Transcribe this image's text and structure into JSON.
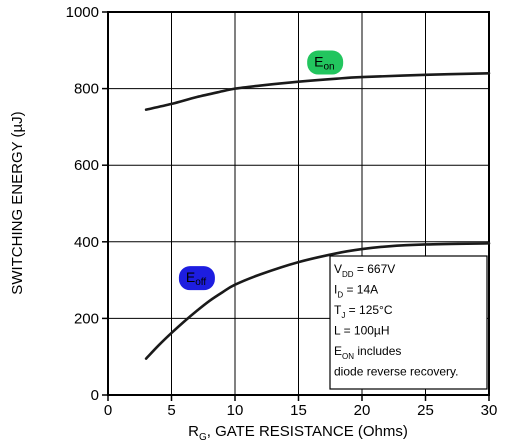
{
  "chart_data": {
    "type": "line",
    "xlabel": {
      "main": "R",
      "sub": "G",
      "rest": ", GATE RESISTANCE (Ohms)"
    },
    "ylabel": "SWITCHING ENERGY (µJ)",
    "xlim": [
      0,
      30
    ],
    "ylim": [
      0,
      1000
    ],
    "xticks": [
      "0",
      "5",
      "10",
      "15",
      "20",
      "25",
      "30"
    ],
    "yticks": [
      "0",
      "200",
      "400",
      "600",
      "800",
      "1000"
    ],
    "grid": true,
    "series": [
      {
        "name": "Eon",
        "label_main": "E",
        "label_sub": "on",
        "badge_color": "#22c55e",
        "x": [
          3,
          5,
          7,
          9,
          10,
          12,
          15,
          18,
          20,
          25,
          30
        ],
        "y": [
          745,
          760,
          778,
          793,
          800,
          808,
          818,
          826,
          830,
          836,
          840
        ]
      },
      {
        "name": "Eoff",
        "label_main": "E",
        "label_sub": "off",
        "badge_color": "#1d1de0",
        "x": [
          3,
          4,
          5,
          6,
          7,
          8,
          9,
          10,
          12,
          15,
          18,
          20,
          22,
          25,
          30
        ],
        "y": [
          95,
          130,
          162,
          192,
          220,
          246,
          268,
          288,
          315,
          347,
          370,
          381,
          388,
          393,
          396
        ]
      }
    ],
    "annotation": [
      {
        "main": "V",
        "sub": "DD",
        "rest": " = 667V"
      },
      {
        "main": "I",
        "sub": "D",
        "rest": " = 14A"
      },
      {
        "main": "T",
        "sub": "J",
        "rest": " = 125°C"
      },
      {
        "main": "L = 100µH",
        "sub": "",
        "rest": ""
      },
      {
        "main": "E",
        "sub": "ON",
        "rest": "  includes"
      },
      {
        "main": "diode  reverse  recovery.",
        "sub": "",
        "rest": ""
      }
    ]
  }
}
